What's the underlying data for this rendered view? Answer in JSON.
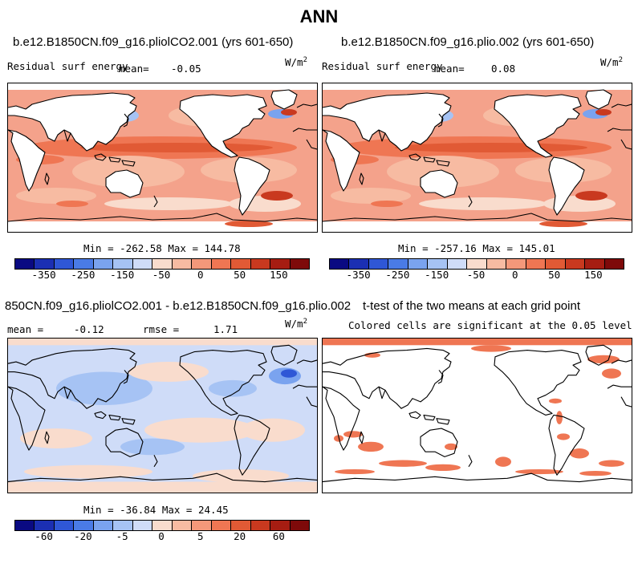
{
  "main_title": "ANN",
  "panels": {
    "p1": {
      "title": "b.e12.B1850CN.f09_g16.pliolCO2.001 (yrs 601-650)",
      "variable": "Residual surf energy",
      "mean_label": "mean=",
      "mean_value": "-0.05",
      "unit_base": "W/m",
      "unit_exp": "2",
      "minmax": "Min = -262.58 Max = 144.78"
    },
    "p2": {
      "title": "b.e12.B1850CN.f09_g16.plio.002 (yrs 601-650)",
      "variable": "Residual surf energy",
      "mean_label": "mean=",
      "mean_value": "0.08",
      "unit_base": "W/m",
      "unit_exp": "2",
      "minmax": "Min = -257.16 Max = 145.01"
    },
    "p3": {
      "title": "850CN.f09_g16.pliolCO2.001 - b.e12.B1850CN.f09_g16.plio.002",
      "mean_label": "mean =",
      "mean_value": "-0.12",
      "rmse_label": "rmse =",
      "rmse_value": "1.71",
      "unit_base": "W/m",
      "unit_exp": "2",
      "minmax": "Min = -36.84 Max = 24.45"
    },
    "p4": {
      "title": "t-test of the two means at each grid point",
      "subtitle": "Colored cells are significant at the 0.05 level"
    }
  },
  "colorbar_top": {
    "colors": [
      "#0a0a82",
      "#1b2fb3",
      "#2f57d6",
      "#4a7be6",
      "#7aa3ef",
      "#a6c3f4",
      "#cfdcf8",
      "#f9dccd",
      "#f7bba2",
      "#f4987a",
      "#ef7653",
      "#e15a35",
      "#c9391f",
      "#a61d12",
      "#7e0a0a"
    ],
    "labels": [
      "-350",
      "-250",
      "-150",
      "-50",
      "0",
      "50",
      "150"
    ]
  },
  "colorbar_bottom": {
    "colors": [
      "#0a0a82",
      "#1b2fb3",
      "#2f57d6",
      "#4a7be6",
      "#7aa3ef",
      "#a6c3f4",
      "#cfdcf8",
      "#f9dccd",
      "#f7bba2",
      "#f4987a",
      "#ef7653",
      "#e15a35",
      "#c9391f",
      "#a61d12",
      "#7e0a0a"
    ],
    "labels": [
      "-60",
      "-20",
      "-5",
      "0",
      "5",
      "20",
      "60"
    ]
  }
}
